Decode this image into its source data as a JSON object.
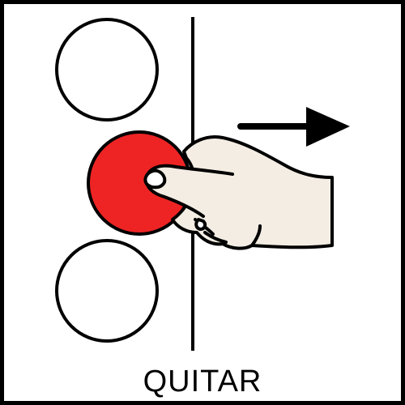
{
  "pictogram": {
    "label": "QUITAR",
    "colors": {
      "border": "#000000",
      "background": "#ffffff",
      "circle_fill": "#ffffff",
      "removed_circle_fill": "#ee2424",
      "hand_fill": "#f3ede3",
      "stroke": "#000000"
    },
    "icons": [
      "empty-circle-icon",
      "removed-circle-icon",
      "divider-line-icon",
      "hand-icon",
      "arrow-right-icon"
    ]
  }
}
